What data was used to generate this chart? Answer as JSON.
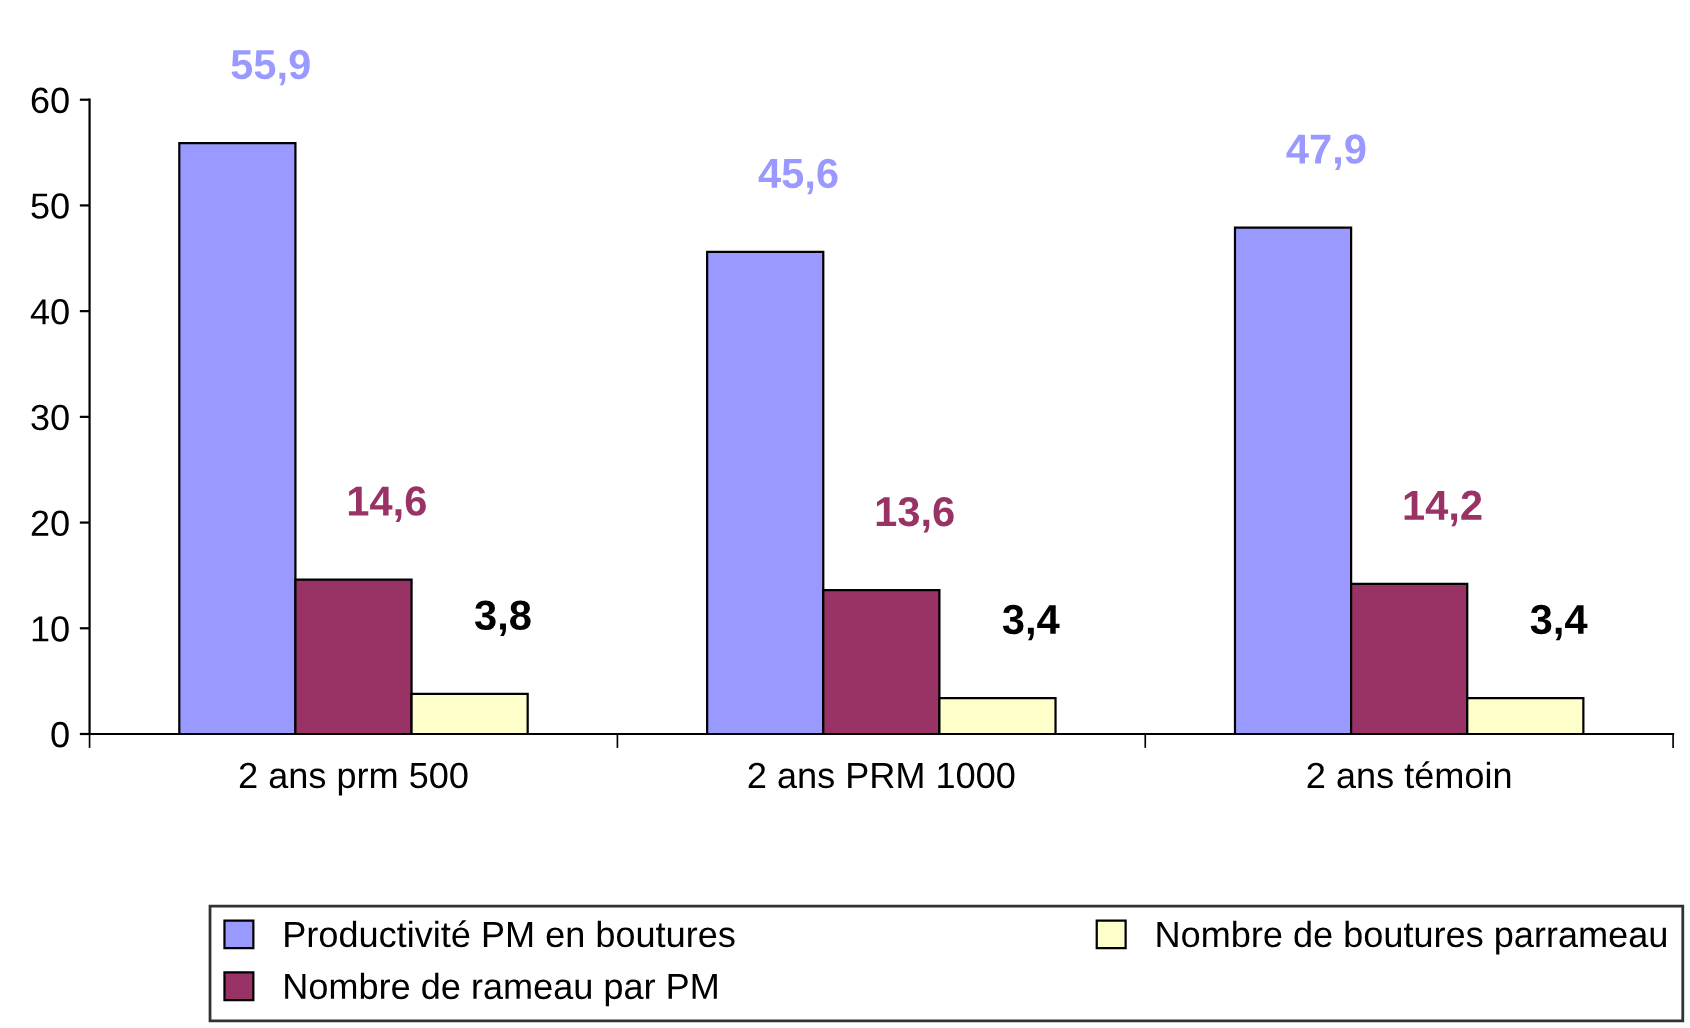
{
  "chart_data": {
    "type": "bar",
    "categories": [
      "2 ans prm 500",
      "2 ans PRM 1000",
      "2 ans témoin"
    ],
    "series": [
      {
        "name": "Productivité PM en boutures",
        "color": "#9999ff",
        "values": [
          55.9,
          45.6,
          47.9
        ],
        "value_labels": [
          "55,9",
          "45,6",
          "47,9"
        ]
      },
      {
        "name": "Nombre de rameau par PM",
        "color": "#993366",
        "values": [
          14.6,
          13.6,
          14.2
        ],
        "value_labels": [
          "14,6",
          "13,6",
          "14,2"
        ]
      },
      {
        "name": "Nombre de boutures parrameau",
        "color": "#ffffcc",
        "values": [
          3.8,
          3.4,
          3.4
        ],
        "value_labels": [
          "3,8",
          "3,4",
          "3,4"
        ]
      }
    ],
    "ylim": [
      0,
      60
    ],
    "yticks": [
      0,
      10,
      20,
      30,
      40,
      50,
      60
    ],
    "grid": false,
    "legend": "bottom"
  }
}
